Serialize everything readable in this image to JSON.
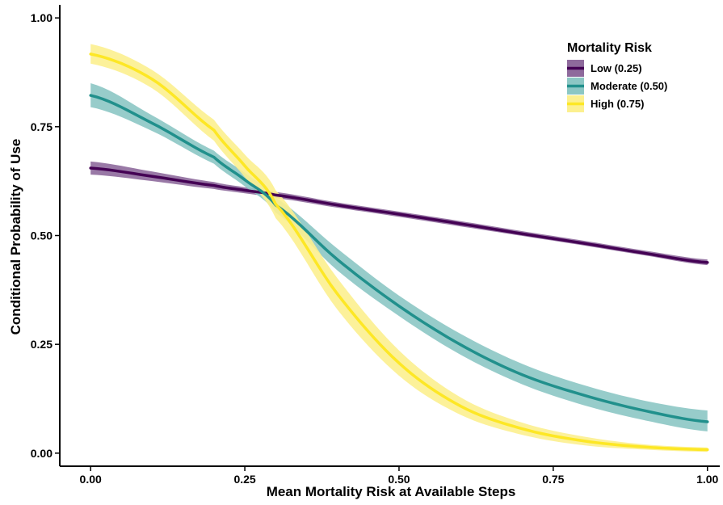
{
  "chart_data": {
    "type": "line",
    "title": "",
    "xlabel": "Mean Mortality Risk at Available Steps",
    "ylabel": "Conditional Probability of Use",
    "xlim": [
      -0.05,
      1.02
    ],
    "ylim": [
      -0.03,
      1.03
    ],
    "x_ticks": [
      {
        "value": 0.0,
        "label": "0.00"
      },
      {
        "value": 0.25,
        "label": "0.25"
      },
      {
        "value": 0.5,
        "label": "0.50"
      },
      {
        "value": 0.75,
        "label": "0.75"
      },
      {
        "value": 1.0,
        "label": "1.00"
      }
    ],
    "y_ticks": [
      {
        "value": 0.0,
        "label": "0.00"
      },
      {
        "value": 0.25,
        "label": "0.25"
      },
      {
        "value": 0.5,
        "label": "0.50"
      },
      {
        "value": 0.75,
        "label": "0.75"
      },
      {
        "value": 1.0,
        "label": "1.00"
      }
    ],
    "grid": false,
    "legend": {
      "title": "Mortality Risk",
      "placement": "top-right"
    },
    "x": [
      0.0,
      0.1,
      0.2,
      0.25,
      0.3,
      0.4,
      0.5,
      0.6,
      0.7,
      0.8,
      0.9,
      1.0
    ],
    "series": [
      {
        "name": "Low (0.25)",
        "color": "#440154",
        "band_color": "#8e6a9c",
        "values": [
          0.655,
          0.636,
          0.615,
          0.604,
          0.593,
          0.57,
          0.549,
          0.527,
          0.504,
          0.482,
          0.459,
          0.438
        ],
        "lower": [
          0.64,
          0.625,
          0.607,
          0.597,
          0.586,
          0.564,
          0.543,
          0.521,
          0.499,
          0.477,
          0.454,
          0.432
        ],
        "upper": [
          0.67,
          0.647,
          0.623,
          0.611,
          0.6,
          0.576,
          0.555,
          0.533,
          0.51,
          0.488,
          0.465,
          0.445
        ]
      },
      {
        "name": "Moderate (0.50)",
        "color": "#21908c",
        "band_color": "#8cc7c4",
        "values": [
          0.822,
          0.758,
          0.68,
          0.628,
          0.57,
          0.445,
          0.338,
          0.249,
          0.18,
          0.133,
          0.097,
          0.072
        ],
        "lower": [
          0.795,
          0.74,
          0.665,
          0.613,
          0.553,
          0.42,
          0.315,
          0.226,
          0.158,
          0.11,
          0.075,
          0.05
        ],
        "upper": [
          0.85,
          0.776,
          0.695,
          0.644,
          0.587,
          0.47,
          0.362,
          0.274,
          0.205,
          0.156,
          0.12,
          0.098
        ]
      },
      {
        "name": "High (0.75)",
        "color": "#fde725",
        "band_color": "#fcf08f",
        "values": [
          0.917,
          0.859,
          0.742,
          0.66,
          0.572,
          0.366,
          0.207,
          0.108,
          0.056,
          0.028,
          0.014,
          0.008
        ],
        "lower": [
          0.895,
          0.838,
          0.718,
          0.634,
          0.54,
          0.33,
          0.178,
          0.088,
          0.042,
          0.018,
          0.008,
          0.003
        ],
        "upper": [
          0.94,
          0.88,
          0.766,
          0.686,
          0.604,
          0.402,
          0.236,
          0.128,
          0.07,
          0.038,
          0.02,
          0.013
        ]
      }
    ]
  }
}
